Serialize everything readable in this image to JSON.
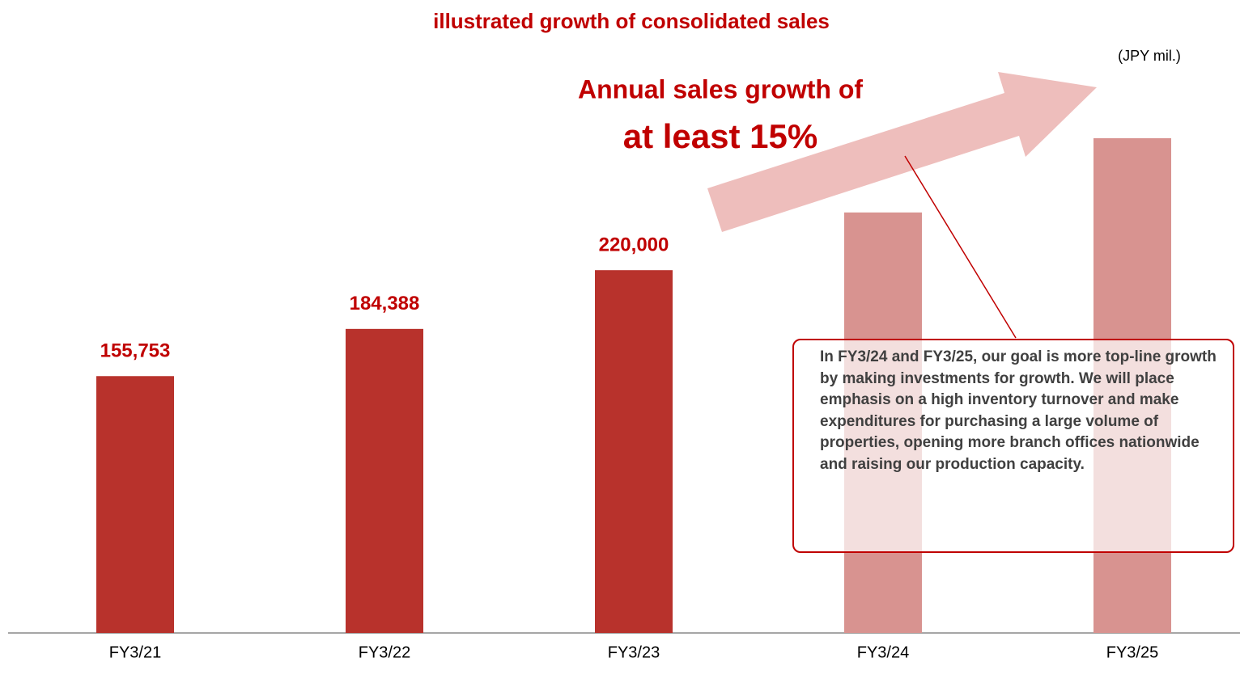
{
  "chart_data": {
    "type": "bar",
    "title": "illustrated growth of consolidated sales",
    "unit": "(JPY mil.)",
    "categories": [
      "FY3/21",
      "FY3/22",
      "FY3/23",
      "FY3/24",
      "FY3/25"
    ],
    "values": [
      155753,
      184388,
      220000,
      255000,
      300000
    ],
    "value_labels": [
      "155,753",
      "184,388",
      "220,000",
      null,
      null
    ],
    "colors": [
      "#b8322c",
      "#b8322c",
      "#b8322c",
      "#d89390",
      "#d89390"
    ],
    "annotations": [
      "Annual sales growth of",
      "at least 15%",
      "In FY3/24 and FY3/25, our goal is more top-line growth by making investments for growth. We will place emphasis on a high inventory turnover and make expenditures for purchasing a large volume of properties, opening more branch offices nationwide and raising our production capacity."
    ]
  }
}
